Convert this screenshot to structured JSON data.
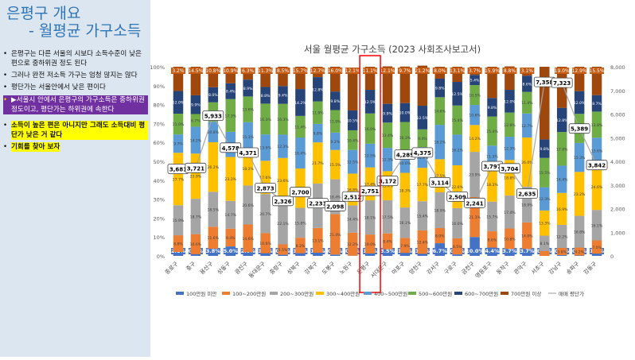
{
  "slide": {
    "title_line1": "은평구 개요",
    "title_line2": "- 월평균 가구소득",
    "bullets": [
      {
        "text": "은평구는 다른 서울의 시보다 소득수준이 낮은 편으로 중하위권 정도 된다",
        "style": "plain"
      },
      {
        "text": "그러나 완전 저소득 가구는 엄청 많지는 않다",
        "style": "plain"
      },
      {
        "text": "평단가는 서울안에서 낮은 편이다",
        "style": "plain"
      },
      {
        "text": "▶서울시 안에서 은평구의 가구소득은 중하위권 정도이고, 평단가는 하위권에 속한다",
        "style": "dark"
      },
      {
        "text": "소득이 높은 편은 아니지만 그래도 소득대비 평단가 낮은 거 같다",
        "style": "yellow"
      },
      {
        "text": "기회를 찾아 보자",
        "style": "yellow"
      }
    ]
  },
  "chart_data": {
    "type": "bar",
    "title": "서울 월평균 가구소득 (2023 사회조사보고서)",
    "stacked": true,
    "y_left_ticks": [
      "0%",
      "10%",
      "20%",
      "30%",
      "40%",
      "50%",
      "60%",
      "70%",
      "80%",
      "90%",
      "100%"
    ],
    "y_right_ticks": [
      "0",
      "1,000",
      "2,000",
      "3,000",
      "4,000",
      "5,000",
      "6,000",
      "7,000",
      "8,000"
    ],
    "ylim_left": [
      0,
      100
    ],
    "ylim_right": [
      0,
      8000
    ],
    "categories": [
      "종로구",
      "중구",
      "용산구",
      "성동구",
      "광진구",
      "동대문구",
      "중랑구",
      "성북구",
      "강북구",
      "도봉구",
      "노원구",
      "은평구",
      "서대문구",
      "마포구",
      "양천구",
      "강서구",
      "구로구",
      "금천구",
      "영등포구",
      "동작구",
      "관악구",
      "서초구",
      "강남구",
      "송파구",
      "강동구"
    ],
    "highlight_category": "은평구",
    "series": [
      {
        "name": "100만원 미만",
        "color": "#4472c4",
        "values": [
          2.1,
          0.9,
          3.8,
          5.0,
          2.0,
          1.4,
          0.6,
          1.4,
          1.7,
          0.7,
          0.1,
          1.3,
          3.5,
          1.6,
          1.1,
          6.7,
          0.8,
          10.0,
          4.4,
          3.7,
          3.7,
          0.0,
          0.4,
          0.2,
          1.2
        ]
      },
      {
        "name": "100~200만원",
        "color": "#ed7d31",
        "values": [
          8.8,
          10.6,
          11.6,
          9.4,
          14.6,
          10.6,
          5.5,
          8.2,
          13.1,
          21.4,
          12.2,
          10.0,
          8.4,
          7.9,
          12.4,
          8.0,
          8.5,
          21.1,
          8.6,
          10.8,
          14.0,
          2.6,
          3.8,
          4.2,
          7.0
        ]
      },
      {
        "name": "200~300만원",
        "color": "#a5a5a5",
        "values": [
          15.9,
          18.7,
          18.5,
          14.7,
          20.6,
          20.7,
          22.1,
          15.8,
          23.5,
          18.4,
          14.4,
          18.1,
          17.5,
          16.1,
          15.4,
          18.9,
          16.0,
          23.9,
          15.7,
          17.4,
          18.9,
          8.1,
          12.2,
          16.8,
          16.1
        ]
      },
      {
        "name": "300~400만원",
        "color": "#ffc000",
        "values": [
          27.7,
          23.9,
          26.2,
          23.2,
          18.2,
          17.6,
          23.6,
          20.8,
          21.7,
          15.5,
          16.8,
          17.4,
          15.4,
          18.3,
          17.7,
          17.5,
          22.6,
          14.2,
          18.3,
          18.8,
          26.0,
          13.3,
          16.9,
          23.2,
          24.6
        ]
      },
      {
        "name": "400~500만원",
        "color": "#5b9bd5",
        "values": [
          9.7,
          14.2,
          10.8,
          13.3,
          15.3,
          13.9,
          12.3,
          16.4,
          9.8,
          9.2,
          12.5,
          12.5,
          12.3,
          10.6,
          10.9,
          18.2,
          16.2,
          10.6,
          11.3,
          12.3,
          12.7,
          12.3,
          14.4,
          15.3,
          13.6
        ]
      },
      {
        "name": "500~600만원",
        "color": "#70ad47",
        "values": [
          11.0,
          6.7,
          10.3,
          17.3,
          13.6,
          16.3,
          16.3,
          11.4,
          11.9,
          11.9,
          10.4,
          16.0,
          13.4,
          16.3,
          9.4,
          14.6,
          15.4,
          10.5,
          15.4,
          12.8,
          11.4,
          15.5,
          17.8,
          15.4,
          13.8
        ]
      },
      {
        "name": "600~700만원",
        "color": "#264478",
        "values": [
          12.0,
          9.9,
          8.0,
          8.4,
          8.9,
          8.8,
          9.4,
          14.2,
          12.8,
          9.8,
          10.5,
          12.5,
          9.9,
          10.0,
          12.5,
          9.8,
          12.5,
          5.4,
          9.8,
          12.0,
          8.6,
          9.8,
          12.8,
          12.0,
          8.7
        ]
      },
      {
        "name": "700만원 이상",
        "color": "#9e480e",
        "values": [
          12.8,
          15.1,
          10.8,
          8.7,
          6.3,
          10.7,
          10.2,
          11.8,
          5.5,
          13.1,
          22.1,
          12.2,
          19.8,
          19.3,
          21.2,
          6.3,
          8.0,
          4.3,
          16.5,
          12.4,
          4.3,
          38.4,
          21.7,
          12.9,
          15.0
        ]
      }
    ],
    "top_labels": [
      "3.2%",
      "14.5%",
      "10.8%",
      "10.9%",
      "6.3%",
      "11.3%",
      "8.5%",
      "15.7%",
      "12.7%",
      "16.0%",
      "12.1%",
      "11.1%",
      "12.1%",
      "9.7%",
      "21.2%",
      "8.0%",
      "13.1%",
      "3.7%",
      "15.9%",
      "8.8%",
      "3.1%",
      "",
      "19.0%",
      "12.9%",
      "15.5%"
    ],
    "price_series": {
      "name": "매매 평단가",
      "color": "#a6a6a6",
      "values": [
        3681,
        3721,
        5933,
        4578,
        4371,
        2873,
        2326,
        2700,
        2231,
        2098,
        2512,
        2751,
        3172,
        4285,
        4375,
        3114,
        2509,
        2241,
        3797,
        3704,
        2635,
        7358,
        7323,
        5389,
        3842
      ],
      "labels": [
        "3,681",
        "3,721",
        "5,933",
        "4,578",
        "4,371",
        "2,873",
        "2,326",
        "2,700",
        "2,231",
        "2,098",
        "2,512",
        "2,751",
        "3,172",
        "4,285",
        "4,375",
        "3,114",
        "2,509",
        "2,241",
        "3,797",
        "3,704",
        "2,635",
        "7,358",
        "7,323",
        "5,389",
        "3,842"
      ]
    }
  }
}
